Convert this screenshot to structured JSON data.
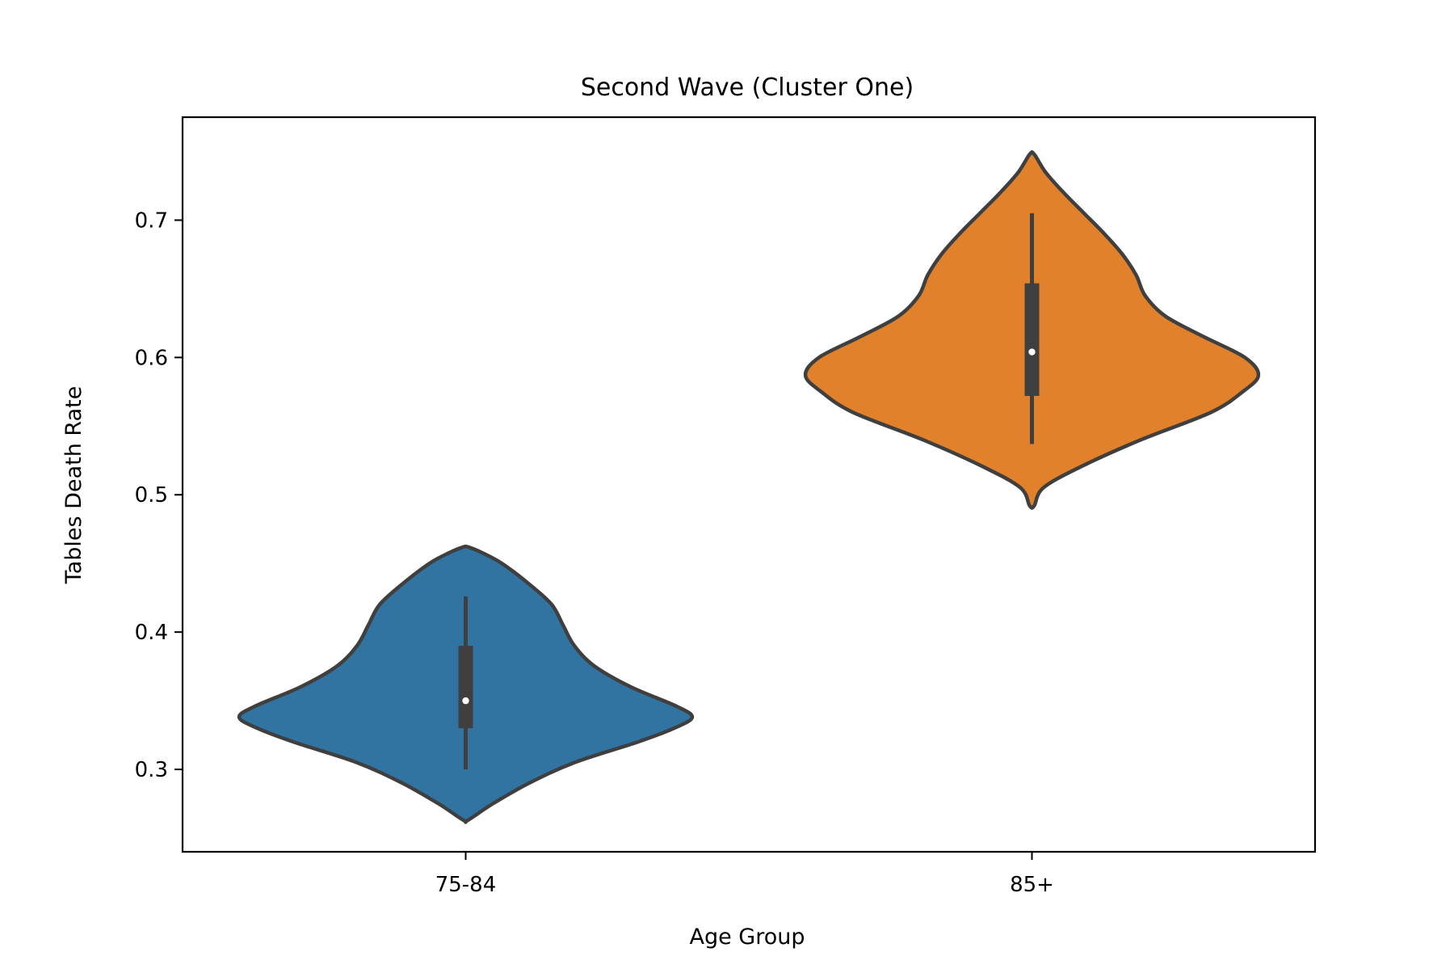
{
  "chart_data": {
    "type": "violin",
    "title": "Second Wave (Cluster One)",
    "xlabel": "Age Group",
    "ylabel": "Tables Death Rate",
    "categories": [
      "75-84",
      "85+"
    ],
    "ylim": [
      0.24,
      0.775
    ],
    "yticks": [
      0.3,
      0.4,
      0.5,
      0.6,
      0.7
    ],
    "ytick_labels": [
      "0.3",
      "0.4",
      "0.5",
      "0.6",
      "0.7"
    ],
    "grid": false,
    "violins": [
      {
        "category": "75-84",
        "color": "#3274a1",
        "min": 0.263,
        "max": 0.462,
        "whisker_low": 0.3,
        "q1": 0.33,
        "median": 0.35,
        "q3": 0.39,
        "whisker_high": 0.426,
        "density": [
          [
            0.263,
            0.01
          ],
          [
            0.275,
            0.12
          ],
          [
            0.29,
            0.28
          ],
          [
            0.305,
            0.48
          ],
          [
            0.32,
            0.76
          ],
          [
            0.33,
            0.92
          ],
          [
            0.338,
            1.0
          ],
          [
            0.346,
            0.93
          ],
          [
            0.36,
            0.73
          ],
          [
            0.375,
            0.57
          ],
          [
            0.39,
            0.48
          ],
          [
            0.405,
            0.43
          ],
          [
            0.42,
            0.38
          ],
          [
            0.435,
            0.28
          ],
          [
            0.45,
            0.16
          ],
          [
            0.458,
            0.07
          ],
          [
            0.462,
            0.01
          ]
        ]
      },
      {
        "category": "85+",
        "color": "#e1812c",
        "min": 0.492,
        "max": 0.748,
        "whisker_low": 0.537,
        "q1": 0.572,
        "median": 0.604,
        "q3": 0.654,
        "whisker_high": 0.705,
        "density": [
          [
            0.492,
            0.01
          ],
          [
            0.505,
            0.05
          ],
          [
            0.52,
            0.21
          ],
          [
            0.54,
            0.48
          ],
          [
            0.56,
            0.79
          ],
          [
            0.575,
            0.93
          ],
          [
            0.587,
            1.0
          ],
          [
            0.6,
            0.94
          ],
          [
            0.615,
            0.76
          ],
          [
            0.63,
            0.59
          ],
          [
            0.645,
            0.5
          ],
          [
            0.66,
            0.46
          ],
          [
            0.675,
            0.4
          ],
          [
            0.69,
            0.32
          ],
          [
            0.705,
            0.23
          ],
          [
            0.72,
            0.14
          ],
          [
            0.735,
            0.06
          ],
          [
            0.748,
            0.01
          ]
        ]
      }
    ]
  }
}
